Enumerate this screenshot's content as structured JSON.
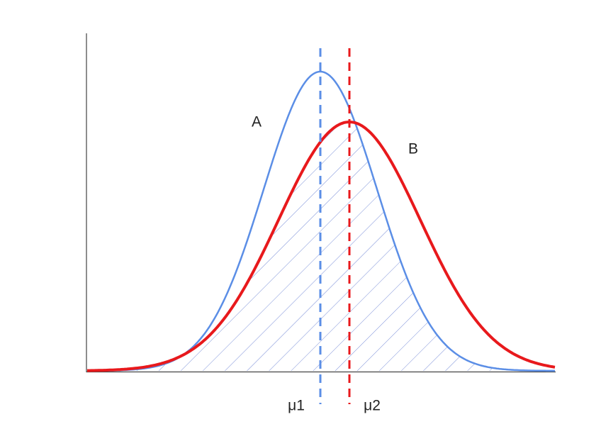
{
  "labels": {
    "curve_a": "A",
    "curve_b": "B",
    "mean_1": "μ1",
    "mean_2": "μ2"
  }
}
